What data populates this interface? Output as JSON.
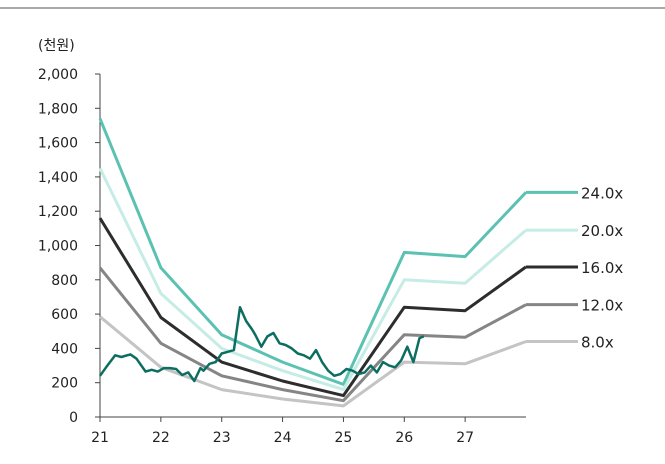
{
  "chart_data": {
    "type": "line",
    "ylabel": "(천원)",
    "xlabel": "",
    "ylim": [
      0,
      2000
    ],
    "xlim": [
      21,
      28
    ],
    "y_ticks": [
      0,
      200,
      400,
      600,
      800,
      1000,
      1200,
      1400,
      1600,
      1800,
      2000
    ],
    "y_tick_labels": [
      "0",
      "200",
      "400",
      "600",
      "800",
      "1,000",
      "1,200",
      "1,400",
      "1,600",
      "1,800",
      "2,000"
    ],
    "x_ticks": [
      21,
      22,
      23,
      24,
      25,
      26,
      27
    ],
    "x_tick_labels": [
      "21",
      "22",
      "23",
      "24",
      "25",
      "26",
      "27"
    ],
    "grid": false,
    "legend_placement": "right",
    "band_x": [
      21,
      22,
      23,
      24,
      25,
      26,
      27,
      28
    ],
    "series": [
      {
        "name": "24.0x",
        "color": "#5bc2b2",
        "values": [
          1740,
          870,
          480,
          320,
          190,
          960,
          935,
          1310
        ]
      },
      {
        "name": "20.0x",
        "color": "#c6ece6",
        "values": [
          1450,
          720,
          400,
          270,
          160,
          800,
          780,
          1090
        ]
      },
      {
        "name": "16.0x",
        "color": "#2d2d2d",
        "values": [
          1160,
          580,
          320,
          210,
          125,
          640,
          620,
          875
        ]
      },
      {
        "name": "12.0x",
        "color": "#858585",
        "values": [
          870,
          430,
          240,
          160,
          95,
          480,
          465,
          655
        ]
      },
      {
        "name": "8.0x",
        "color": "#c4c4c4",
        "values": [
          585,
          290,
          160,
          105,
          65,
          320,
          310,
          440
        ]
      }
    ],
    "price_series": {
      "color": "#0b6e60",
      "x": [
        21.0,
        21.1,
        21.25,
        21.35,
        21.5,
        21.6,
        21.75,
        21.85,
        21.95,
        22.05,
        22.15,
        22.25,
        22.35,
        22.45,
        22.55,
        22.65,
        22.7,
        22.8,
        22.9,
        23.0,
        23.1,
        23.2,
        23.3,
        23.4,
        23.5,
        23.55,
        23.65,
        23.75,
        23.85,
        23.95,
        24.05,
        24.15,
        24.25,
        24.35,
        24.45,
        24.55,
        24.65,
        24.75,
        24.85,
        24.95,
        25.05,
        25.15,
        25.25,
        25.35,
        25.45,
        25.55,
        25.65,
        25.75,
        25.85,
        25.95,
        26.05,
        26.15,
        26.25,
        26.32
      ],
      "values": [
        240,
        290,
        360,
        350,
        365,
        340,
        265,
        275,
        265,
        285,
        285,
        280,
        245,
        260,
        210,
        285,
        270,
        310,
        320,
        370,
        380,
        390,
        640,
        560,
        510,
        480,
        410,
        470,
        490,
        430,
        420,
        400,
        370,
        360,
        340,
        390,
        320,
        270,
        240,
        250,
        280,
        270,
        250,
        260,
        300,
        260,
        320,
        300,
        290,
        330,
        410,
        320,
        460,
        470
      ]
    }
  }
}
